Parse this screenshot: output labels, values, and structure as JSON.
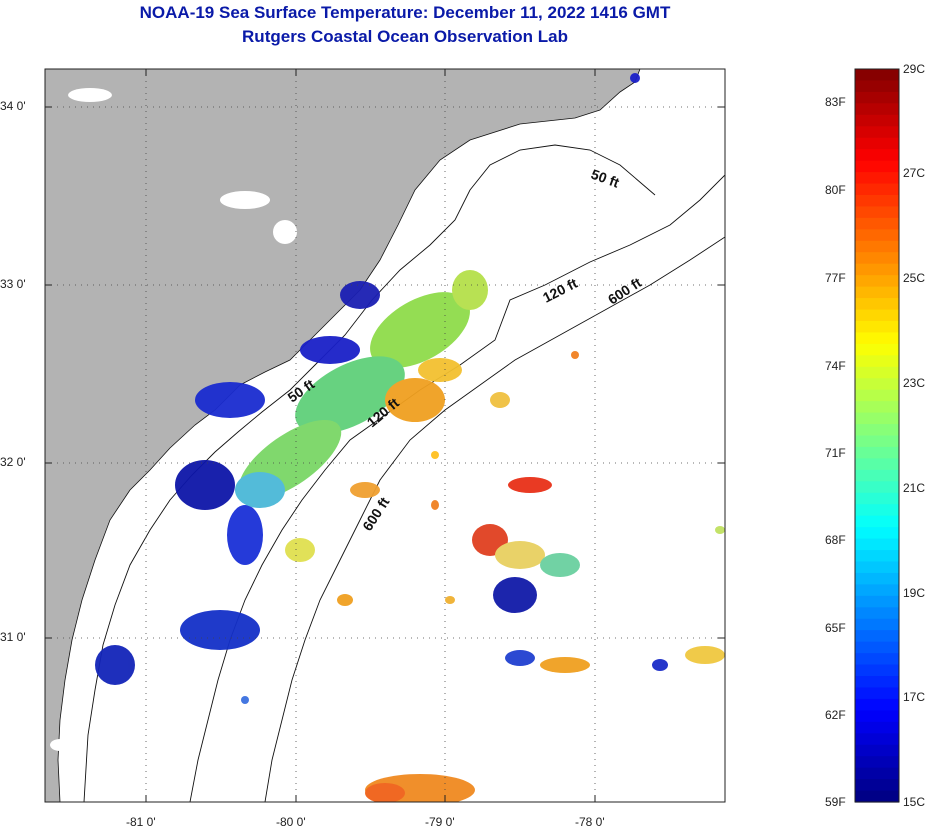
{
  "header": {
    "title": "NOAA-19 Sea Surface Temperature:  December 11, 2022 1416 GMT",
    "subtitle": "Rutgers Coastal Ocean Observation Lab"
  },
  "map": {
    "lat_labels": [
      "34 0'",
      "33 0'",
      "32 0'",
      "31 0'"
    ],
    "lon_labels": [
      "-81 0'",
      "-80 0'",
      "-79 0'",
      "-78 0'"
    ],
    "contour_labels": [
      "50 ft",
      "120 ft",
      "600 ft",
      "50 ft",
      "120 ft",
      "600 ft"
    ],
    "land_color": "#b3b3b3",
    "ocean_color": "#ffffff"
  },
  "colorbar": {
    "fahrenheit_labels": [
      "83F",
      "80F",
      "77F",
      "74F",
      "71F",
      "68F",
      "65F",
      "62F",
      "59F"
    ],
    "celsius_labels": [
      "29C",
      "27C",
      "25C",
      "23C",
      "21C",
      "19C",
      "17C",
      "15C"
    ],
    "min_c": 15,
    "max_c": 29,
    "colormap": "jet"
  }
}
